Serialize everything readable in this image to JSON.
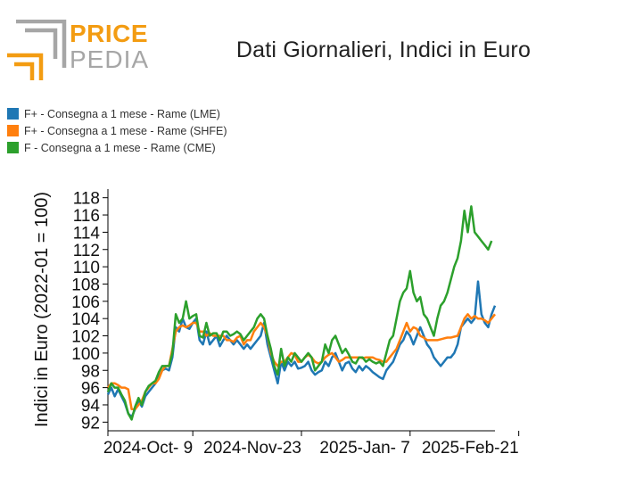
{
  "brand": {
    "line1": "PRICE",
    "line2": "PEDIA"
  },
  "colors": {
    "lme": "#1f77b4",
    "shfe": "#ff7f0e",
    "cme": "#2ca02c",
    "logo_orange": "#f39c12",
    "logo_gray": "#a6a6a6"
  },
  "chart_data": {
    "type": "line",
    "title": "Dati Giornalieri, Indici in Euro",
    "ylabel": "Indici in Euro (2022-01 = 100)",
    "xlabel": "",
    "ylim": [
      91,
      119
    ],
    "yticks": [
      92,
      94,
      96,
      98,
      100,
      102,
      104,
      106,
      108,
      110,
      112,
      114,
      116,
      118
    ],
    "xtick_labels": [
      "2024-Oct- 9",
      "2024-Nov-23",
      "2025-Jan- 7",
      "2025-Feb-21"
    ],
    "xtick_index": [
      25,
      57,
      89,
      121
    ],
    "legend_position": "top-left",
    "grid": false,
    "series": [
      {
        "name": "F+ - Consegna a 1 mese - Rame (LME)",
        "color": "#1f77b4",
        "values": [
          95.2,
          96.0,
          95.0,
          95.8,
          95.0,
          94.2,
          93.0,
          92.6,
          93.5,
          94.5,
          93.8,
          95.0,
          95.5,
          96.0,
          96.5,
          97.2,
          98.0,
          98.2,
          98.0,
          99.5,
          103.0,
          102.5,
          104.0,
          103.0,
          102.8,
          103.5,
          104.0,
          101.5,
          101.0,
          102.5,
          101.0,
          101.5,
          102.0,
          100.8,
          101.5,
          102.0,
          101.5,
          101.0,
          101.5,
          101.0,
          100.5,
          101.0,
          100.5,
          101.0,
          101.5,
          102.0,
          103.5,
          101.0,
          99.5,
          98.0,
          96.5,
          99.0,
          98.0,
          99.0,
          98.5,
          99.0,
          98.2,
          98.3,
          98.5,
          99.0,
          98.0,
          97.5,
          97.8,
          98.0,
          99.0,
          98.5,
          99.5,
          100.0,
          99.0,
          98.0,
          98.8,
          99.0,
          98.2,
          97.8,
          98.5,
          98.0,
          98.5,
          98.2,
          97.8,
          97.5,
          97.2,
          97.0,
          98.0,
          98.5,
          99.0,
          100.0,
          101.0,
          101.5,
          102.5,
          102.0,
          101.0,
          102.0,
          103.0,
          102.0,
          101.0,
          100.5,
          99.5,
          99.0,
          98.5,
          99.0,
          99.5,
          99.5,
          100.0,
          101.0,
          103.0,
          103.5,
          104.0,
          103.5,
          104.0,
          108.3,
          104.5,
          103.5,
          103.0,
          104.5,
          105.5
        ]
      },
      {
        "name": "F+ - Consegna a 1 mese - Rame (SHFE)",
        "color": "#ff7f0e",
        "values": [
          96.0,
          96.5,
          96.5,
          96.3,
          96.0,
          96.0,
          95.8,
          93.5,
          93.5,
          94.0,
          94.5,
          95.5,
          96.0,
          96.5,
          96.5,
          97.0,
          98.0,
          98.5,
          98.5,
          100.5,
          102.5,
          103.0,
          103.2,
          103.0,
          103.2,
          103.5,
          103.5,
          102.5,
          102.5,
          102.0,
          102.3,
          102.0,
          102.0,
          102.0,
          102.0,
          101.5,
          101.5,
          101.3,
          101.8,
          102.0,
          101.0,
          101.5,
          101.5,
          102.5,
          103.0,
          103.5,
          103.0,
          102.0,
          100.0,
          99.0,
          98.5,
          99.0,
          99.0,
          99.5,
          100.0,
          99.8,
          99.0,
          99.0,
          99.5,
          99.8,
          99.5,
          99.0,
          98.8,
          99.0,
          99.5,
          99.8,
          100.0,
          99.5,
          99.0,
          99.2,
          99.5,
          99.5,
          99.5,
          99.5,
          99.5,
          99.4,
          99.5,
          99.5,
          99.5,
          99.3,
          99.2,
          99.0,
          99.0,
          99.5,
          100.0,
          100.5,
          101.5,
          102.5,
          103.5,
          102.5,
          103.0,
          102.8,
          102.0,
          101.8,
          101.5,
          101.5,
          101.5,
          101.5,
          101.6,
          101.7,
          101.8,
          101.8,
          101.9,
          102.0,
          103.0,
          104.0,
          104.5,
          104.0,
          104.3,
          104.0,
          104.0,
          103.8,
          103.5,
          104.0,
          104.5
        ]
      },
      {
        "name": "F - Consegna a 1 mese - Rame (CME)",
        "color": "#2ca02c",
        "values": [
          95.5,
          96.5,
          96.0,
          96.0,
          95.2,
          94.5,
          93.0,
          92.3,
          93.8,
          94.8,
          94.0,
          95.5,
          96.2,
          96.5,
          96.8,
          97.8,
          98.5,
          98.5,
          98.5,
          100.0,
          104.5,
          103.5,
          104.0,
          106.0,
          104.0,
          104.3,
          104.5,
          102.0,
          101.8,
          103.5,
          102.0,
          102.3,
          102.3,
          101.5,
          102.5,
          102.5,
          102.0,
          102.2,
          102.5,
          102.2,
          101.5,
          102.0,
          102.5,
          103.0,
          104.0,
          104.5,
          104.0,
          102.0,
          100.5,
          98.5,
          97.5,
          100.5,
          98.5,
          99.5,
          99.0,
          100.0,
          99.5,
          99.0,
          99.5,
          100.0,
          99.5,
          98.0,
          98.5,
          99.0,
          101.0,
          100.0,
          101.5,
          102.0,
          101.0,
          100.0,
          100.5,
          99.8,
          99.0,
          98.8,
          99.5,
          99.5,
          99.0,
          99.3,
          99.0,
          98.8,
          99.0,
          98.5,
          100.0,
          101.5,
          102.0,
          104.0,
          106.0,
          107.0,
          107.5,
          109.5,
          107.0,
          106.0,
          106.5,
          104.5,
          104.0,
          103.0,
          102.0,
          104.0,
          105.5,
          106.0,
          107.0,
          108.5,
          110.0,
          111.0,
          113.0,
          116.5,
          114.0,
          117.0,
          114.0,
          113.5,
          113.0,
          112.5,
          112.0,
          113.0
        ]
      }
    ]
  }
}
